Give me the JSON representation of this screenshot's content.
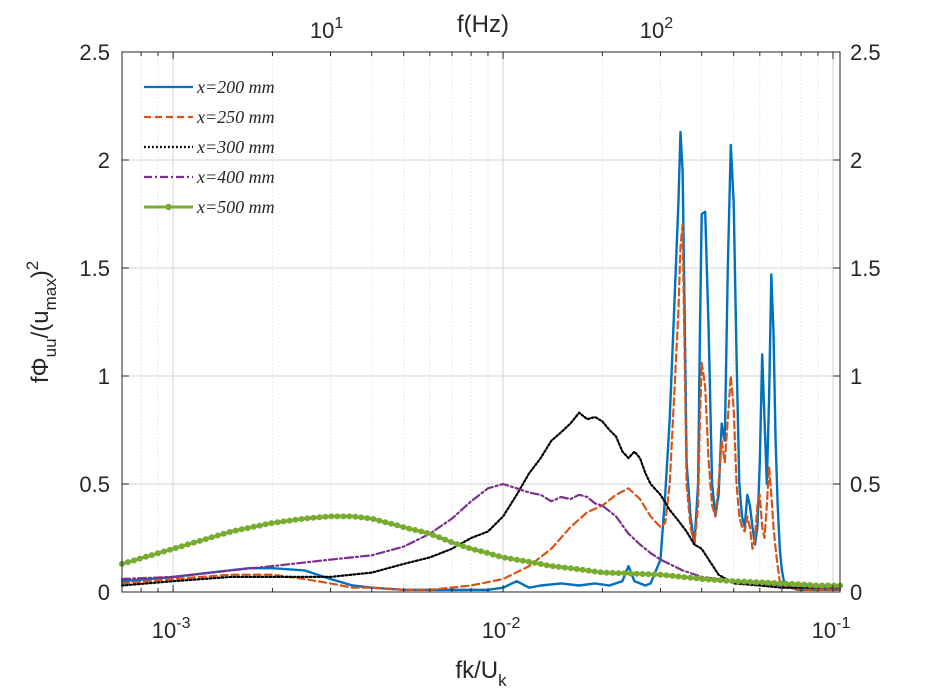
{
  "chart_data": {
    "type": "line",
    "title": "",
    "xscale": "log",
    "xlim": [
      0.0007,
      0.105
    ],
    "ylim": [
      0,
      2.5
    ],
    "xlabel": {
      "main": "fk/U",
      "sub": "k"
    },
    "ylabel": {
      "prefix": "f",
      "phi": "Φ",
      "phi_sub": "uu",
      "mid": "/(u",
      "mid_sub": "max",
      "end": ")",
      "sup": "2"
    },
    "top_xlabel": "f(Hz)",
    "x_ticks": [
      {
        "value": 0.001,
        "base": "10",
        "exp": "-3"
      },
      {
        "value": 0.01,
        "base": "10",
        "exp": "-2"
      },
      {
        "value": 0.1,
        "base": "10",
        "exp": "-1"
      }
    ],
    "y_ticks": [
      {
        "value": 0,
        "label": "0"
      },
      {
        "value": 0.5,
        "label": "0.5"
      },
      {
        "value": 1,
        "label": "1"
      },
      {
        "value": 1.5,
        "label": "1.5"
      },
      {
        "value": 2,
        "label": "2"
      },
      {
        "value": 2.5,
        "label": "2.5"
      }
    ],
    "top_ticks": [
      {
        "value": 0.003,
        "base": "10",
        "exp": "1"
      },
      {
        "value": 0.03,
        "base": "10",
        "exp": "2"
      }
    ],
    "legend_position": "top-left",
    "series": [
      {
        "name": "x=200 mm",
        "color": "#0072BD",
        "dash": "solid",
        "markers": false,
        "x": [
          0.0007,
          0.001,
          0.0013,
          0.0017,
          0.002,
          0.0025,
          0.003,
          0.0035,
          0.004,
          0.005,
          0.006,
          0.007,
          0.008,
          0.009,
          0.01,
          0.011,
          0.012,
          0.013,
          0.015,
          0.017,
          0.019,
          0.021,
          0.023,
          0.024,
          0.025,
          0.026,
          0.027,
          0.028,
          0.03,
          0.031,
          0.032,
          0.033,
          0.034,
          0.0345,
          0.035,
          0.0355,
          0.036,
          0.037,
          0.038,
          0.039,
          0.0395,
          0.04,
          0.041,
          0.042,
          0.043,
          0.044,
          0.045,
          0.046,
          0.047,
          0.048,
          0.049,
          0.05,
          0.051,
          0.052,
          0.053,
          0.054,
          0.055,
          0.056,
          0.057,
          0.058,
          0.059,
          0.06,
          0.061,
          0.062,
          0.063,
          0.064,
          0.065,
          0.066,
          0.067,
          0.068,
          0.069,
          0.07,
          0.071,
          0.072,
          0.073,
          0.075,
          0.078,
          0.082,
          0.09,
          0.1,
          0.105
        ],
        "y": [
          0.05,
          0.07,
          0.09,
          0.11,
          0.11,
          0.1,
          0.06,
          0.03,
          0.02,
          0.01,
          0.01,
          0.01,
          0.01,
          0.01,
          0.02,
          0.05,
          0.02,
          0.03,
          0.04,
          0.03,
          0.04,
          0.03,
          0.05,
          0.12,
          0.05,
          0.04,
          0.03,
          0.04,
          0.15,
          0.45,
          0.8,
          1.3,
          1.8,
          2.13,
          1.95,
          1.3,
          0.6,
          0.35,
          0.22,
          0.5,
          1.2,
          1.75,
          1.76,
          1.2,
          0.5,
          0.35,
          0.45,
          0.78,
          0.7,
          1.5,
          2.07,
          1.8,
          1.1,
          0.5,
          0.35,
          0.3,
          0.45,
          0.4,
          0.3,
          0.22,
          0.3,
          0.6,
          1.1,
          0.8,
          0.5,
          0.9,
          1.47,
          1.2,
          0.7,
          0.4,
          0.2,
          0.1,
          0.05,
          0.03,
          0.02,
          0.02,
          0.01,
          0.01,
          0.01,
          0.01,
          0.01
        ]
      },
      {
        "name": "x=250 mm",
        "color": "#D95319",
        "dash": "dashed",
        "markers": false,
        "x": [
          0.0007,
          0.001,
          0.0015,
          0.002,
          0.0025,
          0.003,
          0.0035,
          0.004,
          0.005,
          0.006,
          0.008,
          0.01,
          0.012,
          0.014,
          0.016,
          0.018,
          0.02,
          0.022,
          0.024,
          0.026,
          0.028,
          0.03,
          0.031,
          0.032,
          0.033,
          0.034,
          0.0345,
          0.035,
          0.0355,
          0.036,
          0.037,
          0.038,
          0.039,
          0.0395,
          0.04,
          0.041,
          0.042,
          0.043,
          0.044,
          0.045,
          0.046,
          0.047,
          0.048,
          0.049,
          0.05,
          0.051,
          0.052,
          0.053,
          0.054,
          0.055,
          0.056,
          0.057,
          0.058,
          0.059,
          0.06,
          0.061,
          0.062,
          0.063,
          0.064,
          0.065,
          0.066,
          0.067,
          0.068,
          0.069,
          0.07,
          0.072,
          0.075,
          0.08,
          0.09,
          0.1,
          0.105
        ],
        "y": [
          0.04,
          0.06,
          0.08,
          0.08,
          0.06,
          0.04,
          0.02,
          0.02,
          0.01,
          0.01,
          0.03,
          0.06,
          0.12,
          0.2,
          0.3,
          0.37,
          0.4,
          0.45,
          0.48,
          0.43,
          0.35,
          0.3,
          0.32,
          0.5,
          0.9,
          1.3,
          1.6,
          1.7,
          1.1,
          0.5,
          0.3,
          0.22,
          0.4,
          0.8,
          1.06,
          0.95,
          0.6,
          0.4,
          0.35,
          0.5,
          0.7,
          0.6,
          0.8,
          1.0,
          0.85,
          0.5,
          0.35,
          0.3,
          0.28,
          0.35,
          0.3,
          0.2,
          0.25,
          0.4,
          0.45,
          0.3,
          0.25,
          0.4,
          0.58,
          0.45,
          0.3,
          0.2,
          0.12,
          0.05,
          0.03,
          0.02,
          0.02,
          0.01,
          0.01,
          0.01,
          0.01
        ]
      },
      {
        "name": "x=300 mm",
        "color": "#000000",
        "dash": "dotted",
        "markers": false,
        "x": [
          0.0007,
          0.001,
          0.0015,
          0.002,
          0.003,
          0.004,
          0.005,
          0.006,
          0.007,
          0.008,
          0.009,
          0.01,
          0.011,
          0.012,
          0.013,
          0.014,
          0.015,
          0.016,
          0.017,
          0.018,
          0.019,
          0.02,
          0.021,
          0.022,
          0.023,
          0.024,
          0.025,
          0.026,
          0.027,
          0.028,
          0.03,
          0.032,
          0.034,
          0.036,
          0.038,
          0.04,
          0.042,
          0.045,
          0.05,
          0.06,
          0.07,
          0.08,
          0.09,
          0.1,
          0.105
        ],
        "y": [
          0.03,
          0.05,
          0.07,
          0.07,
          0.07,
          0.09,
          0.13,
          0.16,
          0.2,
          0.25,
          0.28,
          0.35,
          0.45,
          0.55,
          0.62,
          0.7,
          0.74,
          0.78,
          0.83,
          0.8,
          0.81,
          0.79,
          0.75,
          0.72,
          0.65,
          0.62,
          0.65,
          0.62,
          0.55,
          0.5,
          0.45,
          0.38,
          0.33,
          0.28,
          0.22,
          0.2,
          0.15,
          0.08,
          0.04,
          0.03,
          0.02,
          0.02,
          0.02,
          0.02,
          0.02
        ]
      },
      {
        "name": "x=400 mm",
        "color": "#7E2F8E",
        "dash": "dashdot",
        "markers": false,
        "x": [
          0.0007,
          0.001,
          0.0015,
          0.002,
          0.003,
          0.004,
          0.005,
          0.006,
          0.007,
          0.008,
          0.009,
          0.01,
          0.011,
          0.012,
          0.013,
          0.014,
          0.015,
          0.016,
          0.017,
          0.018,
          0.019,
          0.02,
          0.022,
          0.024,
          0.026,
          0.028,
          0.03,
          0.035,
          0.04,
          0.05,
          0.06,
          0.07,
          0.08,
          0.09,
          0.1,
          0.105
        ],
        "y": [
          0.06,
          0.07,
          0.1,
          0.12,
          0.15,
          0.17,
          0.21,
          0.27,
          0.34,
          0.42,
          0.48,
          0.5,
          0.48,
          0.46,
          0.45,
          0.42,
          0.44,
          0.43,
          0.45,
          0.44,
          0.41,
          0.4,
          0.35,
          0.27,
          0.22,
          0.18,
          0.15,
          0.1,
          0.07,
          0.05,
          0.04,
          0.03,
          0.03,
          0.02,
          0.02,
          0.02
        ]
      },
      {
        "name": "x=500 mm",
        "color": "#77AC30",
        "dash": "solid",
        "markers": true,
        "x": [
          0.0007,
          0.001,
          0.0015,
          0.002,
          0.0025,
          0.003,
          0.0035,
          0.004,
          0.005,
          0.006,
          0.007,
          0.008,
          0.009,
          0.01,
          0.012,
          0.014,
          0.016,
          0.018,
          0.02,
          0.025,
          0.03,
          0.035,
          0.04,
          0.05,
          0.06,
          0.07,
          0.08,
          0.09,
          0.1,
          0.105
        ],
        "y": [
          0.13,
          0.2,
          0.28,
          0.32,
          0.34,
          0.35,
          0.35,
          0.34,
          0.3,
          0.27,
          0.23,
          0.2,
          0.18,
          0.16,
          0.14,
          0.12,
          0.11,
          0.1,
          0.09,
          0.085,
          0.08,
          0.07,
          0.06,
          0.05,
          0.045,
          0.04,
          0.035,
          0.03,
          0.03,
          0.03
        ]
      }
    ]
  }
}
